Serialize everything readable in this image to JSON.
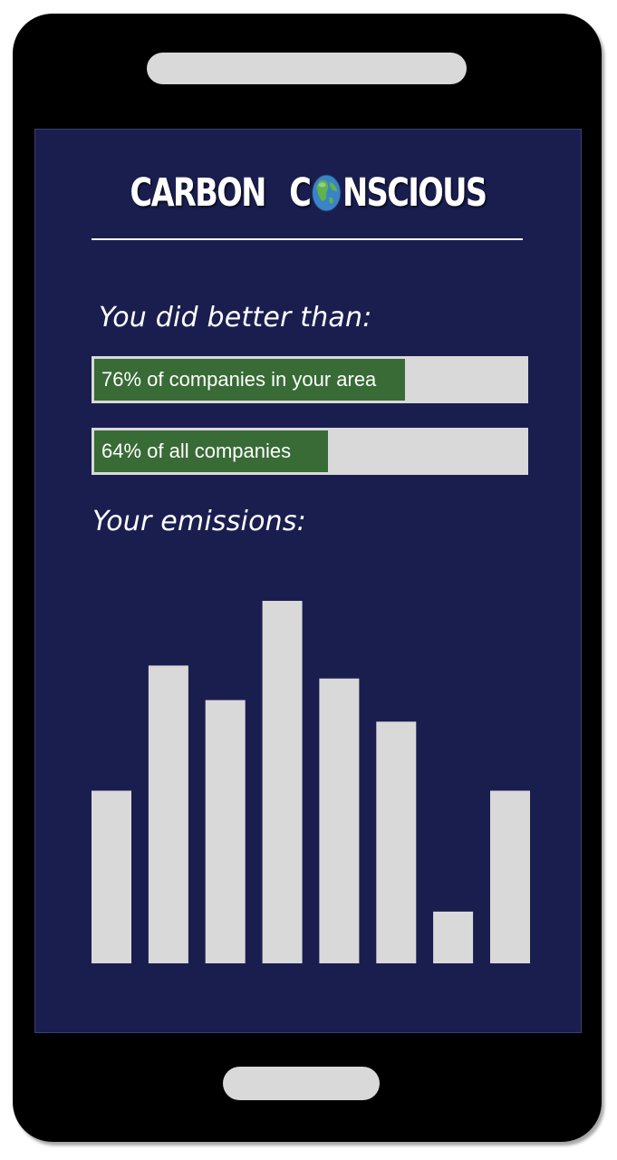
{
  "app": {
    "logo_word_1": "CARBON",
    "logo_word_2_prefix": "C",
    "logo_word_2_suffix": "NSCIOUS",
    "logo_icon": "globe-icon"
  },
  "comparison": {
    "heading": "You did better than:",
    "bars": [
      {
        "label": "76% of companies in your area",
        "percent": 76
      },
      {
        "label": "64% of all companies",
        "percent": 64
      }
    ]
  },
  "emissions": {
    "heading": "Your emissions:"
  },
  "chart_data": {
    "type": "bar",
    "categories": [
      "",
      "",
      "",
      "",
      "",
      "",
      "",
      ""
    ],
    "values": [
      40,
      69,
      61,
      84,
      66,
      56,
      12,
      40
    ],
    "ylim": [
      0,
      84
    ],
    "grid": false,
    "bar_color": "#d9d9d9"
  },
  "colors": {
    "screen_background": "#1a1e4f",
    "progress_fill": "#386b35",
    "progress_track": "#d9d9d9"
  }
}
